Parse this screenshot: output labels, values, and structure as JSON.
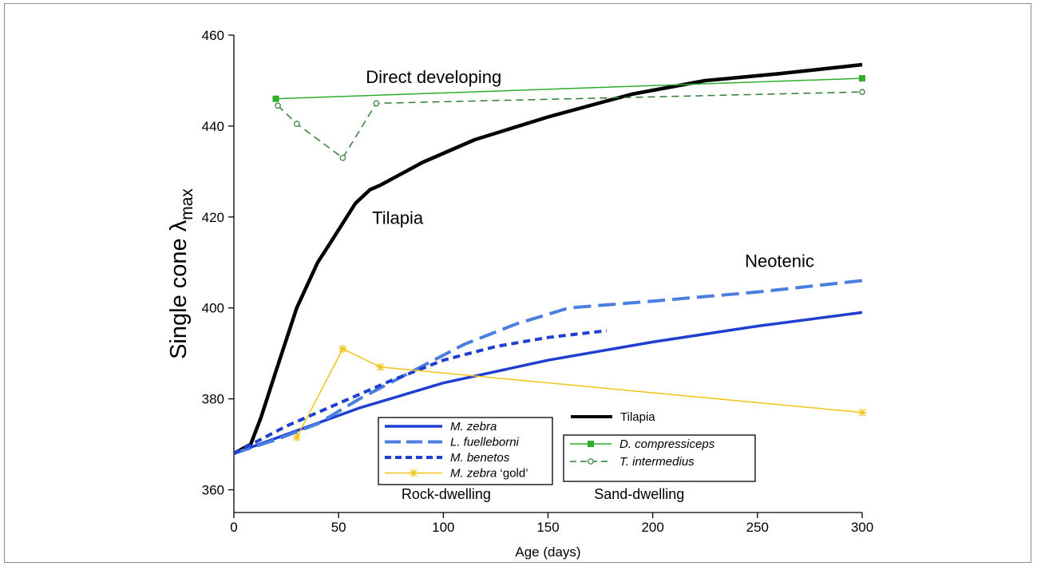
{
  "chart_data": {
    "type": "line",
    "title": "",
    "xlabel": "Age (days)",
    "ylabel": "Single cone λ",
    "ylabel_subscript": "max",
    "xlim": [
      0,
      300
    ],
    "ylim": [
      355,
      460
    ],
    "xticks": [
      0,
      50,
      100,
      150,
      200,
      250,
      300
    ],
    "yticks": [
      360,
      380,
      400,
      420,
      440,
      460
    ],
    "grid": false,
    "series": [
      {
        "name": "Tilapia",
        "color": "#000000",
        "style": "solid",
        "width": 4.5,
        "marker": "none",
        "x": [
          0,
          8,
          13,
          20,
          30,
          40,
          47,
          58,
          65,
          70,
          90,
          115,
          150,
          190,
          225,
          260,
          300
        ],
        "y": [
          368,
          370,
          376,
          386,
          400,
          410,
          415,
          423,
          426,
          427,
          432,
          437,
          442,
          447,
          450,
          451.5,
          453.5
        ]
      },
      {
        "name": "M. zebra",
        "color": "#1f3fd1",
        "style": "solid",
        "width": 3.5,
        "marker": "none",
        "x": [
          0,
          30,
          60,
          100,
          150,
          200,
          250,
          300
        ],
        "y": [
          368,
          373,
          378,
          383.5,
          388.5,
          392.5,
          396,
          399
        ]
      },
      {
        "name": "L. fuelleborni",
        "color": "#4a7fe0",
        "style": "longdash",
        "width": 4,
        "marker": "none",
        "x": [
          0,
          20,
          40,
          60,
          85,
          110,
          135,
          160,
          200,
          250,
          300
        ],
        "y": [
          368,
          371,
          374.5,
          380,
          386,
          392,
          396.5,
          400,
          401.5,
          403.5,
          406
        ]
      },
      {
        "name": "M. benetos",
        "color": "#1f3fd1",
        "style": "dash",
        "width": 4,
        "marker": "none",
        "x": [
          0,
          25,
          50,
          75,
          100,
          125,
          150,
          178
        ],
        "y": [
          368,
          374,
          379,
          384,
          388.5,
          391.5,
          393.5,
          395
        ]
      },
      {
        "name": "M. zebra ‘gold’",
        "color": "#f0c419",
        "style": "solid",
        "width": 1.5,
        "marker": "star",
        "x": [
          30,
          52,
          70,
          300
        ],
        "y": [
          371.5,
          391,
          387,
          377
        ]
      },
      {
        "name": "D. compressiceps",
        "color": "#2eae2e",
        "style": "solid",
        "width": 1.5,
        "marker": "square",
        "x": [
          20,
          300
        ],
        "y": [
          446,
          450.5
        ]
      },
      {
        "name": "T. intermedius",
        "color": "#2e7d32",
        "style": "dash",
        "width": 1.5,
        "marker": "circle",
        "x": [
          21,
          30,
          52,
          68,
          300
        ],
        "y": [
          444.5,
          440.5,
          433,
          445,
          447.5
        ]
      }
    ],
    "annotations": [
      {
        "text": "Direct developing",
        "x": 63,
        "y": 449.5
      },
      {
        "text": "Tilapia",
        "x": 66,
        "y": 418.5
      },
      {
        "text": "Neotenic",
        "x": 244,
        "y": 409
      },
      {
        "text": "Rock-dwelling",
        "x": 80,
        "y": 358
      },
      {
        "text": "Sand-dwelling",
        "x": 172,
        "y": 358
      }
    ],
    "legend_groups": [
      {
        "location": "bottom-center-left",
        "boxed": true,
        "entries": [
          "M. zebra",
          "L. fuelleborni",
          "M. benetos",
          "M. zebra ‘gold’"
        ]
      },
      {
        "location": "bottom-center",
        "boxed": false,
        "entries": [
          "Tilapia"
        ]
      },
      {
        "location": "bottom-center-right",
        "boxed": true,
        "entries": [
          "D. compressiceps",
          "T. intermedius"
        ]
      }
    ]
  }
}
